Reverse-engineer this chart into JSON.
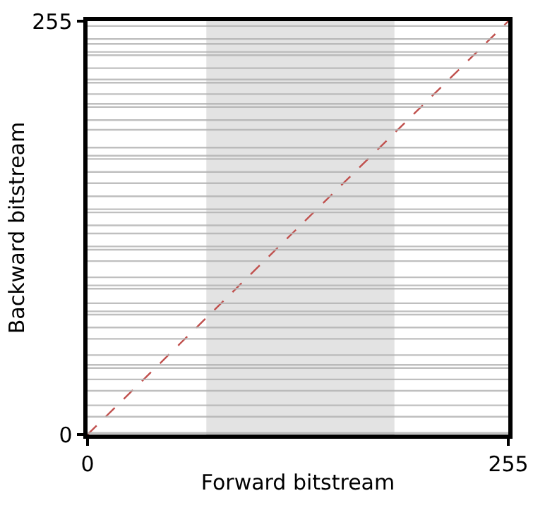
{
  "chart_data": {
    "type": "line",
    "xlabel": "Forward bitstream",
    "ylabel": "Backward bitstream",
    "x": [
      0,
      255
    ],
    "series": [
      {
        "color": "#c0504d",
        "values": [
          0,
          255
        ],
        "line_style": "dashed"
      }
    ],
    "xlim": [
      0,
      255
    ],
    "ylim": [
      0,
      255
    ],
    "xticks": [
      0,
      255
    ],
    "yticks": [
      0,
      255
    ],
    "bands": [
      {
        "axis": "x",
        "from": 72,
        "to": 186,
        "color": "#e3e3e3"
      }
    ],
    "ref_lines": [
      {
        "axis": "y",
        "value": 252,
        "color": "#b4b4b4"
      },
      {
        "axis": "y",
        "value": 244,
        "color": "#b4b4b4"
      },
      {
        "axis": "y",
        "value": 241,
        "color": "#b4b4b4"
      },
      {
        "axis": "y",
        "value": 236,
        "color": "#b4b4b4"
      },
      {
        "axis": "y",
        "value": 234,
        "color": "#b4b4b4"
      },
      {
        "axis": "y",
        "value": 226,
        "color": "#b4b4b4"
      },
      {
        "axis": "y",
        "value": 219,
        "color": "#b4b4b4"
      },
      {
        "axis": "y",
        "value": 217,
        "color": "#b4b4b4"
      },
      {
        "axis": "y",
        "value": 210,
        "color": "#b4b4b4"
      },
      {
        "axis": "y",
        "value": 204,
        "color": "#b4b4b4"
      },
      {
        "axis": "y",
        "value": 202,
        "color": "#b4b4b4"
      },
      {
        "axis": "y",
        "value": 194,
        "color": "#b4b4b4"
      },
      {
        "axis": "y",
        "value": 188,
        "color": "#b4b4b4"
      },
      {
        "axis": "y",
        "value": 177,
        "color": "#b4b4b4"
      },
      {
        "axis": "y",
        "value": 172,
        "color": "#b4b4b4"
      },
      {
        "axis": "y",
        "value": 170,
        "color": "#b4b4b4"
      },
      {
        "axis": "y",
        "value": 162,
        "color": "#b4b4b4"
      },
      {
        "axis": "y",
        "value": 155,
        "color": "#b4b4b4"
      },
      {
        "axis": "y",
        "value": 147,
        "color": "#b4b4b4"
      },
      {
        "axis": "y",
        "value": 139,
        "color": "#b4b4b4"
      },
      {
        "axis": "y",
        "value": 137,
        "color": "#b4b4b4"
      },
      {
        "axis": "y",
        "value": 129,
        "color": "#b4b4b4"
      },
      {
        "axis": "y",
        "value": 124,
        "color": "#b4b4b4"
      },
      {
        "axis": "y",
        "value": 116,
        "color": "#b4b4b4"
      },
      {
        "axis": "y",
        "value": 114,
        "color": "#b4b4b4"
      },
      {
        "axis": "y",
        "value": 107,
        "color": "#b4b4b4"
      },
      {
        "axis": "y",
        "value": 97,
        "color": "#b4b4b4"
      },
      {
        "axis": "y",
        "value": 92,
        "color": "#b4b4b4"
      },
      {
        "axis": "y",
        "value": 90,
        "color": "#b4b4b4"
      },
      {
        "axis": "y",
        "value": 81,
        "color": "#b4b4b4"
      },
      {
        "axis": "y",
        "value": 76,
        "color": "#b4b4b4"
      },
      {
        "axis": "y",
        "value": 74,
        "color": "#b4b4b4"
      },
      {
        "axis": "y",
        "value": 66,
        "color": "#b4b4b4"
      },
      {
        "axis": "y",
        "value": 59,
        "color": "#b4b4b4"
      },
      {
        "axis": "y",
        "value": 49,
        "color": "#b4b4b4"
      },
      {
        "axis": "y",
        "value": 43,
        "color": "#b4b4b4"
      },
      {
        "axis": "y",
        "value": 41,
        "color": "#b4b4b4"
      },
      {
        "axis": "y",
        "value": 34,
        "color": "#b4b4b4"
      },
      {
        "axis": "y",
        "value": 27,
        "color": "#b4b4b4"
      },
      {
        "axis": "y",
        "value": 18,
        "color": "#b4b4b4"
      },
      {
        "axis": "y",
        "value": 11,
        "color": "#b4b4b4"
      },
      {
        "axis": "y",
        "value": 1,
        "color": "#b4b4b4"
      }
    ]
  }
}
